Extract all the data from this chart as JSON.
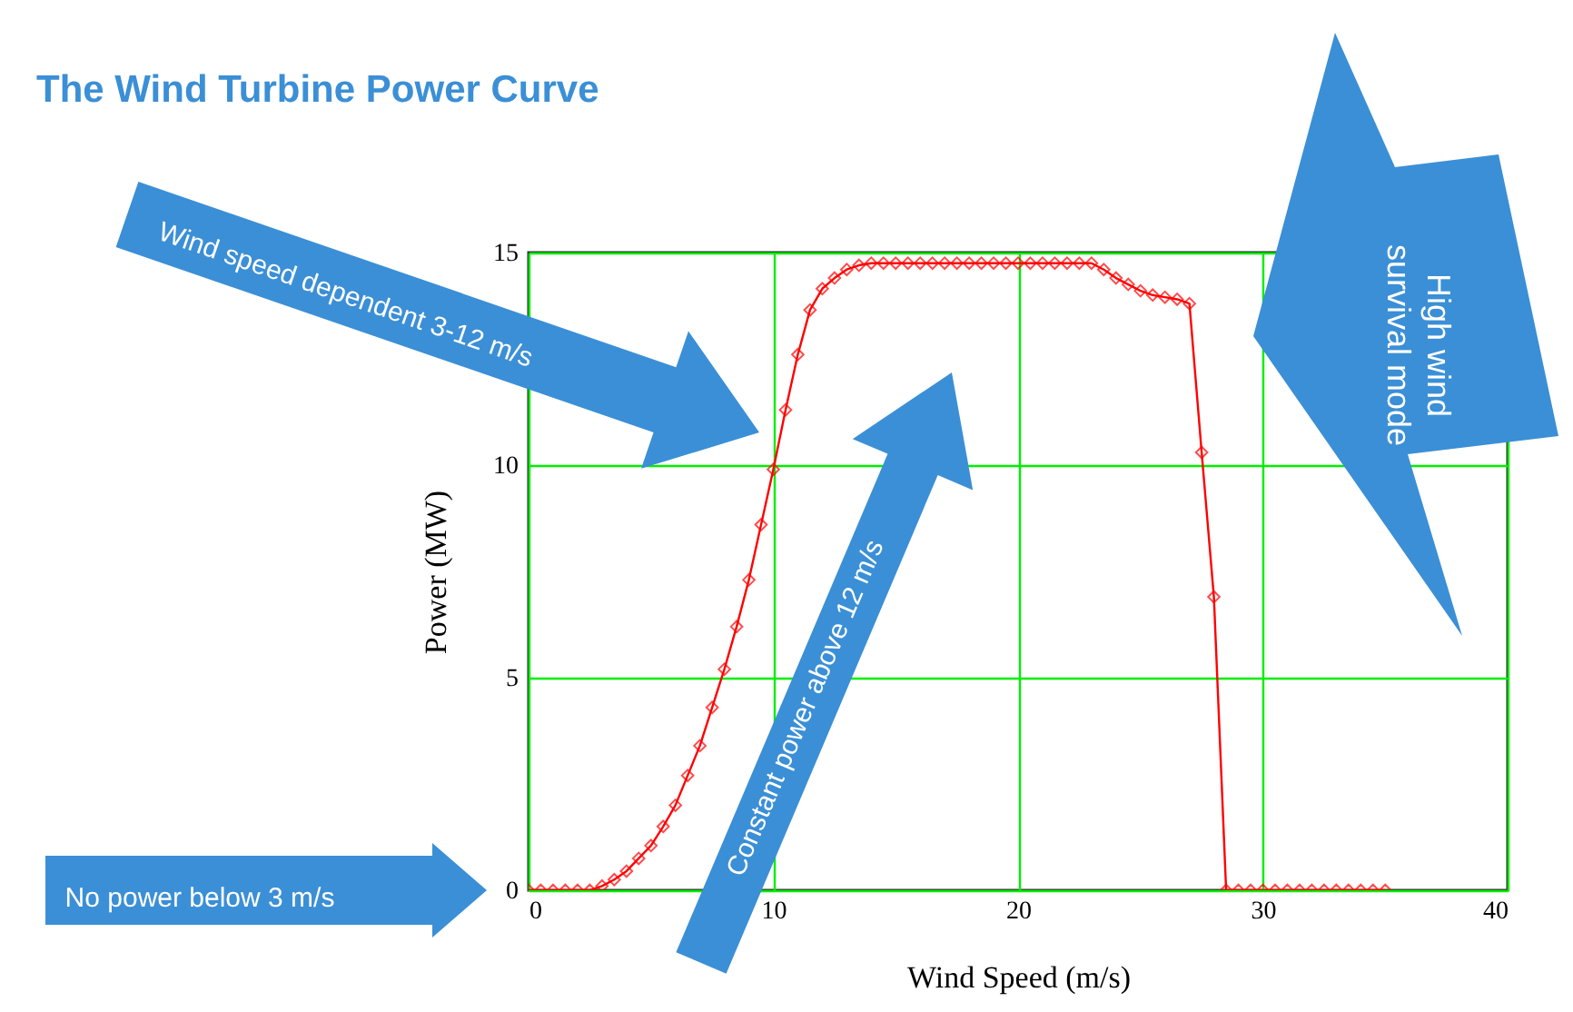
{
  "chart_data": {
    "type": "line",
    "title": "The Wind Turbine Power Curve",
    "xlabel": "Wind Speed (m/s)",
    "ylabel": "Power (MW)",
    "x": [
      0,
      0.5,
      1,
      1.5,
      2,
      2.5,
      3,
      3.5,
      4,
      4.5,
      5,
      5.5,
      6,
      6.5,
      7,
      7.5,
      8,
      8.5,
      9,
      9.5,
      10,
      10.5,
      11,
      11.5,
      12,
      12.5,
      13,
      13.5,
      14,
      14.5,
      15,
      15.5,
      16,
      16.5,
      17,
      17.5,
      18,
      18.5,
      19,
      19.5,
      20,
      20.5,
      21,
      21.5,
      22,
      22.5,
      23,
      23.5,
      24,
      24.5,
      25,
      25.5,
      26,
      26.5,
      27,
      27.5,
      28,
      28.5,
      29,
      29.5,
      30,
      30.5,
      31,
      31.5,
      32,
      32.5,
      33,
      33.5,
      34,
      34.5,
      35
    ],
    "series": [
      {
        "color": "#ff0000",
        "values": [
          0,
          0,
          0,
          0,
          0,
          0,
          0.1,
          0.25,
          0.45,
          0.75,
          1.05,
          1.5,
          2,
          2.7,
          3.4,
          4.3,
          5.2,
          6.2,
          7.3,
          8.6,
          9.9,
          11.3,
          12.6,
          13.65,
          14.15,
          14.4,
          14.6,
          14.7,
          14.75,
          14.75,
          14.75,
          14.75,
          14.75,
          14.75,
          14.75,
          14.75,
          14.75,
          14.75,
          14.75,
          14.75,
          14.75,
          14.75,
          14.75,
          14.75,
          14.75,
          14.75,
          14.75,
          14.6,
          14.4,
          14.25,
          14.1,
          14,
          13.95,
          13.9,
          13.8,
          10.3,
          6.9,
          0,
          0,
          0,
          0,
          0,
          0,
          0,
          0,
          0,
          0,
          0,
          0,
          0,
          0
        ]
      }
    ],
    "xlim": [
      0,
      40
    ],
    "xticks": [
      0,
      10,
      20,
      30,
      40
    ],
    "ylim": [
      0,
      15
    ],
    "yticks": [
      0,
      5,
      10,
      15
    ],
    "grid": true,
    "marker": "diamond",
    "line_style": "solid",
    "legend": false,
    "annotations": [
      "Wind speed dependent 3-12 m/s",
      "Constant power above 12 m/s",
      "No power below 3 m/s",
      "High wind survival mode"
    ]
  }
}
